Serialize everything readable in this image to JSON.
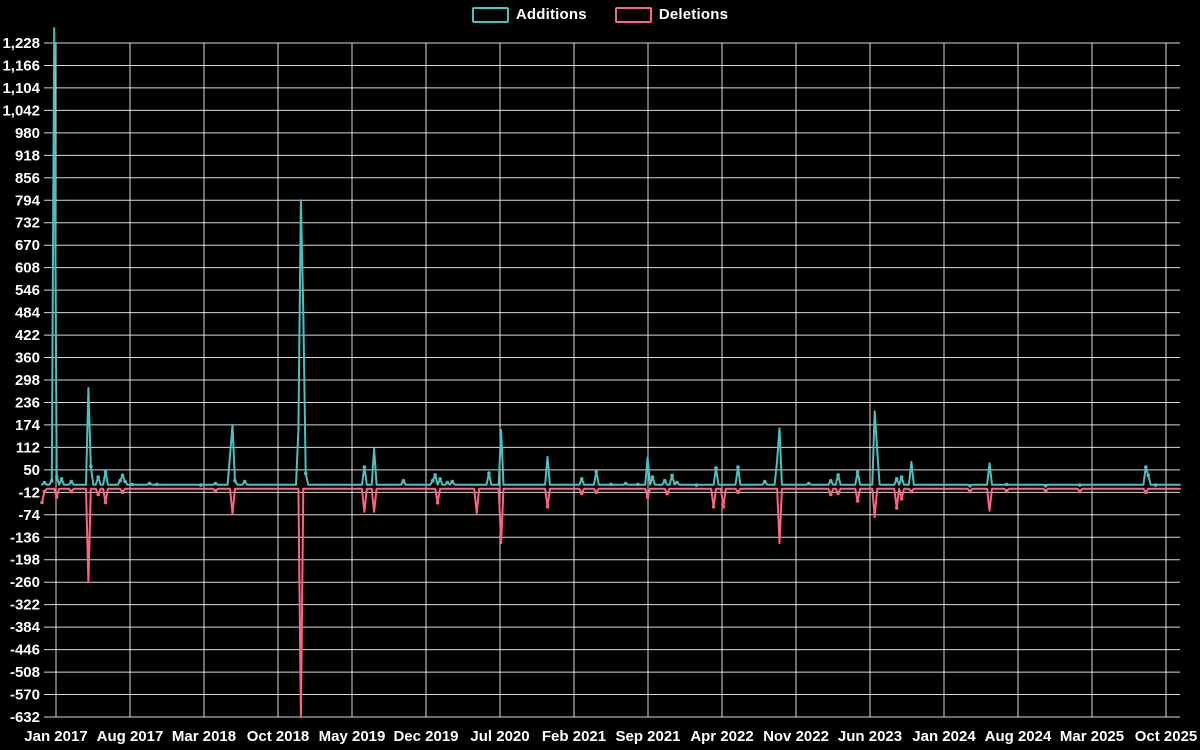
{
  "legend": {
    "items": [
      {
        "label": "Additions",
        "color": "#4bc0c0"
      },
      {
        "label": "Deletions",
        "color": "#ff6384"
      }
    ]
  },
  "chart_data": {
    "type": "line",
    "title": "",
    "xlabel": "",
    "ylabel": "",
    "granularity": "weekly",
    "weeks": 467,
    "grid": true,
    "background": "#000000",
    "gridline_color": "rgba(255,255,255,0.85)",
    "x_axis": {
      "tick_labels": [
        "Jan 2017",
        "Aug 2017",
        "Mar 2018",
        "Oct 2018",
        "May 2019",
        "Dec 2019",
        "Jul 2020",
        "Feb 2021",
        "Sep 2021",
        "Apr 2022",
        "Nov 2022",
        "Jun 2023",
        "Jan 2024",
        "Aug 2024",
        "Mar 2025",
        "Oct 2025"
      ],
      "months_per_tick": 7
    },
    "y_axis": {
      "tick_max": 1228,
      "tick_min": -632,
      "tick_step": 62,
      "tick_labels": [
        "1,228",
        "1,166",
        "1,104",
        "1,042",
        "980",
        "918",
        "856",
        "794",
        "732",
        "670",
        "608",
        "546",
        "484",
        "422",
        "360",
        "298",
        "236",
        "174",
        "112",
        "50",
        "-12",
        "-74",
        "-136",
        "-198",
        "-260",
        "-322",
        "-384",
        "-446",
        "-508",
        "-570",
        "-632"
      ]
    },
    "series": [
      {
        "name": "Additions",
        "color": "#4bc0c0",
        "baseline": 9,
        "events": [
          [
            1,
            15
          ],
          [
            4,
            20
          ],
          [
            5,
            1269
          ],
          [
            6,
            30
          ],
          [
            8,
            25
          ],
          [
            12,
            18
          ],
          [
            19,
            276
          ],
          [
            20,
            60
          ],
          [
            23,
            30
          ],
          [
            26,
            45
          ],
          [
            32,
            20
          ],
          [
            33,
            35
          ],
          [
            34,
            18
          ],
          [
            37,
            10
          ],
          [
            44,
            12
          ],
          [
            47,
            10
          ],
          [
            65,
            8
          ],
          [
            71,
            12
          ],
          [
            77,
            90
          ],
          [
            78,
            174
          ],
          [
            79,
            20
          ],
          [
            83,
            18
          ],
          [
            105,
            160
          ],
          [
            106,
            794
          ],
          [
            107,
            486
          ],
          [
            108,
            40
          ],
          [
            132,
            58
          ],
          [
            136,
            108
          ],
          [
            148,
            20
          ],
          [
            160,
            20
          ],
          [
            161,
            36
          ],
          [
            163,
            25
          ],
          [
            166,
            15
          ],
          [
            168,
            18
          ],
          [
            183,
            41
          ],
          [
            188,
            160
          ],
          [
            207,
            86
          ],
          [
            221,
            25
          ],
          [
            227,
            45
          ],
          [
            233,
            10
          ],
          [
            239,
            12
          ],
          [
            244,
            10
          ],
          [
            248,
            85
          ],
          [
            250,
            30
          ],
          [
            255,
            20
          ],
          [
            258,
            35
          ],
          [
            260,
            15
          ],
          [
            268,
            8
          ],
          [
            276,
            55
          ],
          [
            285,
            58
          ],
          [
            296,
            18
          ],
          [
            301,
            75
          ],
          [
            302,
            165
          ],
          [
            314,
            12
          ],
          [
            323,
            20
          ],
          [
            326,
            36
          ],
          [
            334,
            44
          ],
          [
            341,
            212
          ],
          [
            342,
            106
          ],
          [
            350,
            25
          ],
          [
            352,
            30
          ],
          [
            356,
            72
          ],
          [
            380,
            6
          ],
          [
            388,
            68
          ],
          [
            395,
            10
          ],
          [
            411,
            6
          ],
          [
            425,
            8
          ],
          [
            452,
            58
          ],
          [
            453,
            35
          ],
          [
            456,
            8
          ]
        ]
      },
      {
        "name": "Deletions",
        "color": "#ff6384",
        "baseline": -2,
        "events": [
          [
            0,
            -40
          ],
          [
            1,
            -10
          ],
          [
            6,
            -25
          ],
          [
            12,
            -10
          ],
          [
            19,
            -260
          ],
          [
            23,
            -18
          ],
          [
            26,
            -40
          ],
          [
            33,
            -12
          ],
          [
            71,
            -8
          ],
          [
            78,
            -72
          ],
          [
            106,
            -632
          ],
          [
            132,
            -66
          ],
          [
            136,
            -66
          ],
          [
            162,
            -41
          ],
          [
            178,
            -69
          ],
          [
            188,
            -152
          ],
          [
            207,
            -52
          ],
          [
            221,
            -15
          ],
          [
            227,
            -12
          ],
          [
            248,
            -25
          ],
          [
            256,
            -15
          ],
          [
            275,
            -52
          ],
          [
            279,
            -52
          ],
          [
            285,
            -12
          ],
          [
            302,
            -152
          ],
          [
            323,
            -18
          ],
          [
            326,
            -15
          ],
          [
            334,
            -36
          ],
          [
            341,
            -80
          ],
          [
            350,
            -55
          ],
          [
            352,
            -30
          ],
          [
            356,
            -10
          ],
          [
            380,
            -10
          ],
          [
            388,
            -63
          ],
          [
            395,
            -8
          ],
          [
            411,
            -8
          ],
          [
            425,
            -10
          ],
          [
            452,
            -12
          ]
        ]
      }
    ]
  }
}
